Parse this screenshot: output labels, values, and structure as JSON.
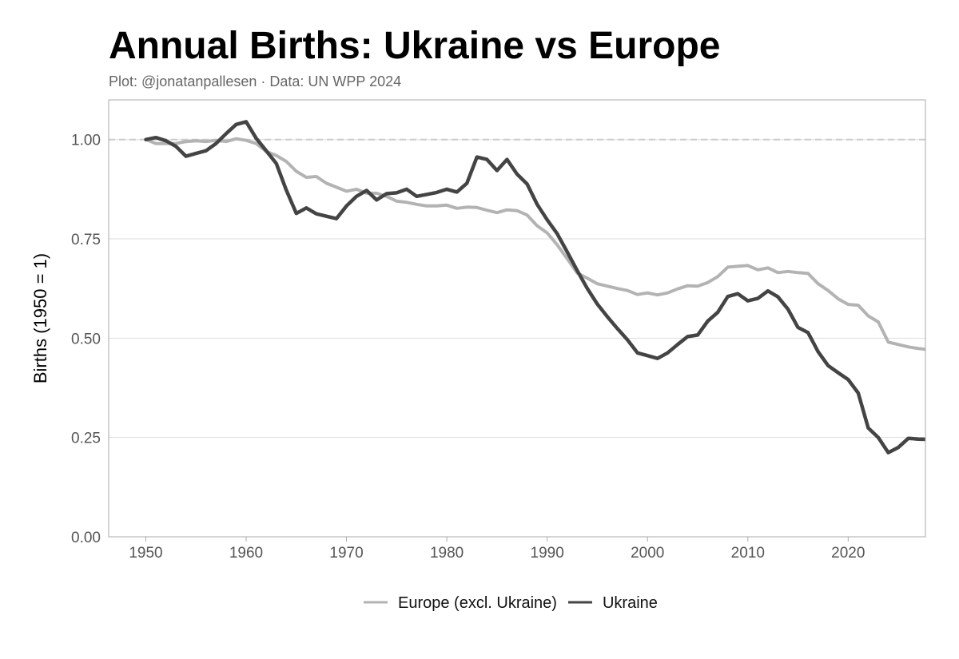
{
  "header": {
    "title": "Annual Births: Ukraine vs Europe",
    "subtitle": "Plot: @jonatanpallesen · Data: UN WPP 2024"
  },
  "chart_data": {
    "type": "line",
    "title": "Annual Births: Ukraine vs Europe",
    "subtitle": "Plot: @jonatanpallesen · Data: UN WPP 2024",
    "xlabel": "",
    "ylabel": "Births (1950 = 1)",
    "xlim": [
      1946.3,
      2027.7
    ],
    "ylim": [
      0,
      1.1
    ],
    "xticks": [
      1950,
      1960,
      1970,
      1980,
      1990,
      2000,
      2010,
      2020
    ],
    "yticks": [
      0.0,
      0.25,
      0.5,
      0.75,
      1.0
    ],
    "ytick_labels": [
      "0.00",
      "0.25",
      "0.50",
      "0.75",
      "1.00"
    ],
    "reference_line": 1.0,
    "grid": "horizontal",
    "legend_position": "bottom",
    "x": [
      1950,
      1951,
      1952,
      1953,
      1954,
      1955,
      1956,
      1957,
      1958,
      1959,
      1960,
      1961,
      1962,
      1963,
      1964,
      1965,
      1966,
      1967,
      1968,
      1969,
      1970,
      1971,
      1972,
      1973,
      1974,
      1975,
      1976,
      1977,
      1978,
      1979,
      1980,
      1981,
      1982,
      1983,
      1984,
      1985,
      1986,
      1987,
      1988,
      1989,
      1990,
      1991,
      1992,
      1993,
      1994,
      1995,
      1996,
      1997,
      1998,
      1999,
      2000,
      2001,
      2002,
      2003,
      2004,
      2005,
      2006,
      2007,
      2008,
      2009,
      2010,
      2011,
      2012,
      2013,
      2014,
      2015,
      2016,
      2017,
      2018,
      2019,
      2020,
      2021,
      2022,
      2023,
      2024,
      2025,
      2026,
      2027,
      2028
    ],
    "series": [
      {
        "name": "Europe (excl. Ukraine)",
        "color": "#b3b3b3",
        "values": [
          1.0,
          0.99,
          0.99,
          0.99,
          0.995,
          0.997,
          0.995,
          0.998,
          0.995,
          1.002,
          0.998,
          0.99,
          0.97,
          0.96,
          0.945,
          0.92,
          0.905,
          0.907,
          0.89,
          0.88,
          0.87,
          0.875,
          0.865,
          0.865,
          0.857,
          0.845,
          0.842,
          0.837,
          0.833,
          0.833,
          0.835,
          0.827,
          0.83,
          0.829,
          0.822,
          0.816,
          0.823,
          0.821,
          0.81,
          0.783,
          0.765,
          0.735,
          0.7,
          0.664,
          0.651,
          0.637,
          0.631,
          0.625,
          0.62,
          0.61,
          0.614,
          0.609,
          0.614,
          0.624,
          0.632,
          0.631,
          0.64,
          0.655,
          0.679,
          0.681,
          0.683,
          0.672,
          0.677,
          0.665,
          0.668,
          0.665,
          0.663,
          0.637,
          0.62,
          0.599,
          0.585,
          0.583,
          0.556,
          0.541,
          0.49,
          0.484,
          0.478,
          0.474,
          0.471
        ]
      },
      {
        "name": "Ukraine",
        "color": "#444444",
        "values": [
          1.0,
          1.005,
          0.997,
          0.983,
          0.958,
          0.965,
          0.972,
          0.99,
          1.015,
          1.038,
          1.045,
          1.003,
          0.972,
          0.94,
          0.873,
          0.814,
          0.828,
          0.813,
          0.807,
          0.801,
          0.833,
          0.857,
          0.872,
          0.848,
          0.864,
          0.866,
          0.875,
          0.857,
          0.862,
          0.867,
          0.875,
          0.868,
          0.89,
          0.956,
          0.95,
          0.922,
          0.95,
          0.913,
          0.888,
          0.837,
          0.798,
          0.763,
          0.717,
          0.67,
          0.625,
          0.586,
          0.554,
          0.524,
          0.496,
          0.463,
          0.456,
          0.449,
          0.463,
          0.484,
          0.504,
          0.508,
          0.543,
          0.565,
          0.605,
          0.612,
          0.594,
          0.6,
          0.619,
          0.604,
          0.573,
          0.527,
          0.514,
          0.466,
          0.431,
          0.413,
          0.396,
          0.362,
          0.274,
          0.25,
          0.212,
          0.225,
          0.248,
          0.246,
          0.245
        ]
      }
    ]
  }
}
